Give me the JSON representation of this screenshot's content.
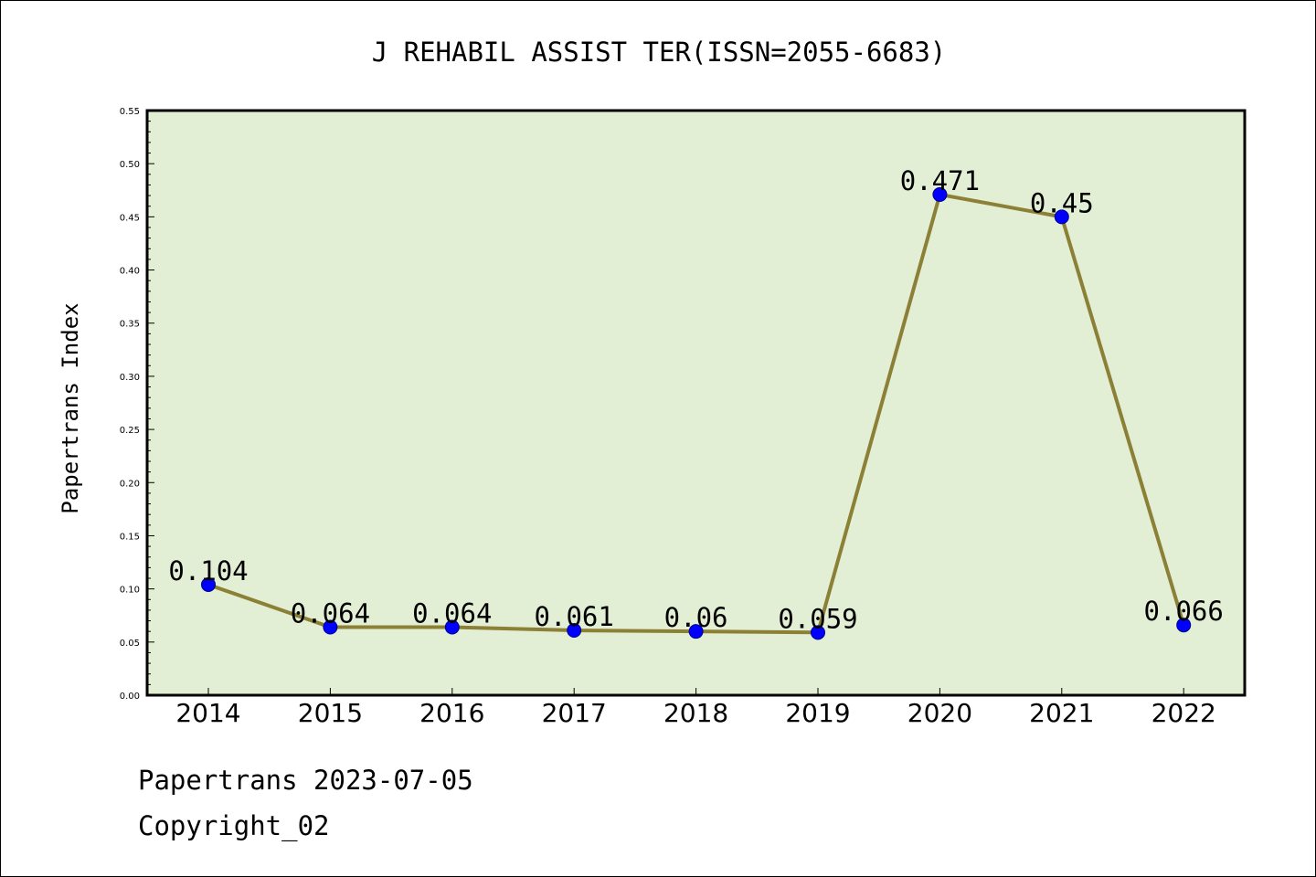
{
  "colors": {
    "plot_background": "#e2efd5",
    "line": "#8b8035",
    "marker": "#0000ff",
    "marker_edge": "#00008b",
    "axes": "#000000"
  },
  "chart_data": {
    "type": "line",
    "title": "J REHABIL ASSIST TER(ISSN=2055-6683)",
    "xlabel": "",
    "ylabel": "Papertrans Index",
    "categories": [
      "2014",
      "2015",
      "2016",
      "2017",
      "2018",
      "2019",
      "2020",
      "2021",
      "2022"
    ],
    "series": [
      {
        "values": [
          0.104,
          0.064,
          0.064,
          0.061,
          0.06,
          0.059,
          0.471,
          0.45,
          0.066
        ],
        "labels": [
          "0.104",
          "0.064",
          "0.064",
          "0.061",
          "0.06",
          "0.059",
          "0.471",
          "0.45",
          "0.066"
        ]
      }
    ],
    "ylim": [
      0,
      0.55
    ],
    "yticks": [
      "0.00",
      "0.05",
      "0.10",
      "0.15",
      "0.20",
      "0.25",
      "0.30",
      "0.35",
      "0.40",
      "0.45",
      "0.50",
      "0.55"
    ],
    "grid": false,
    "legend": "none"
  },
  "footer": {
    "date_line": "Papertrans 2023-07-05",
    "copyright_line": "Copyright_02"
  }
}
